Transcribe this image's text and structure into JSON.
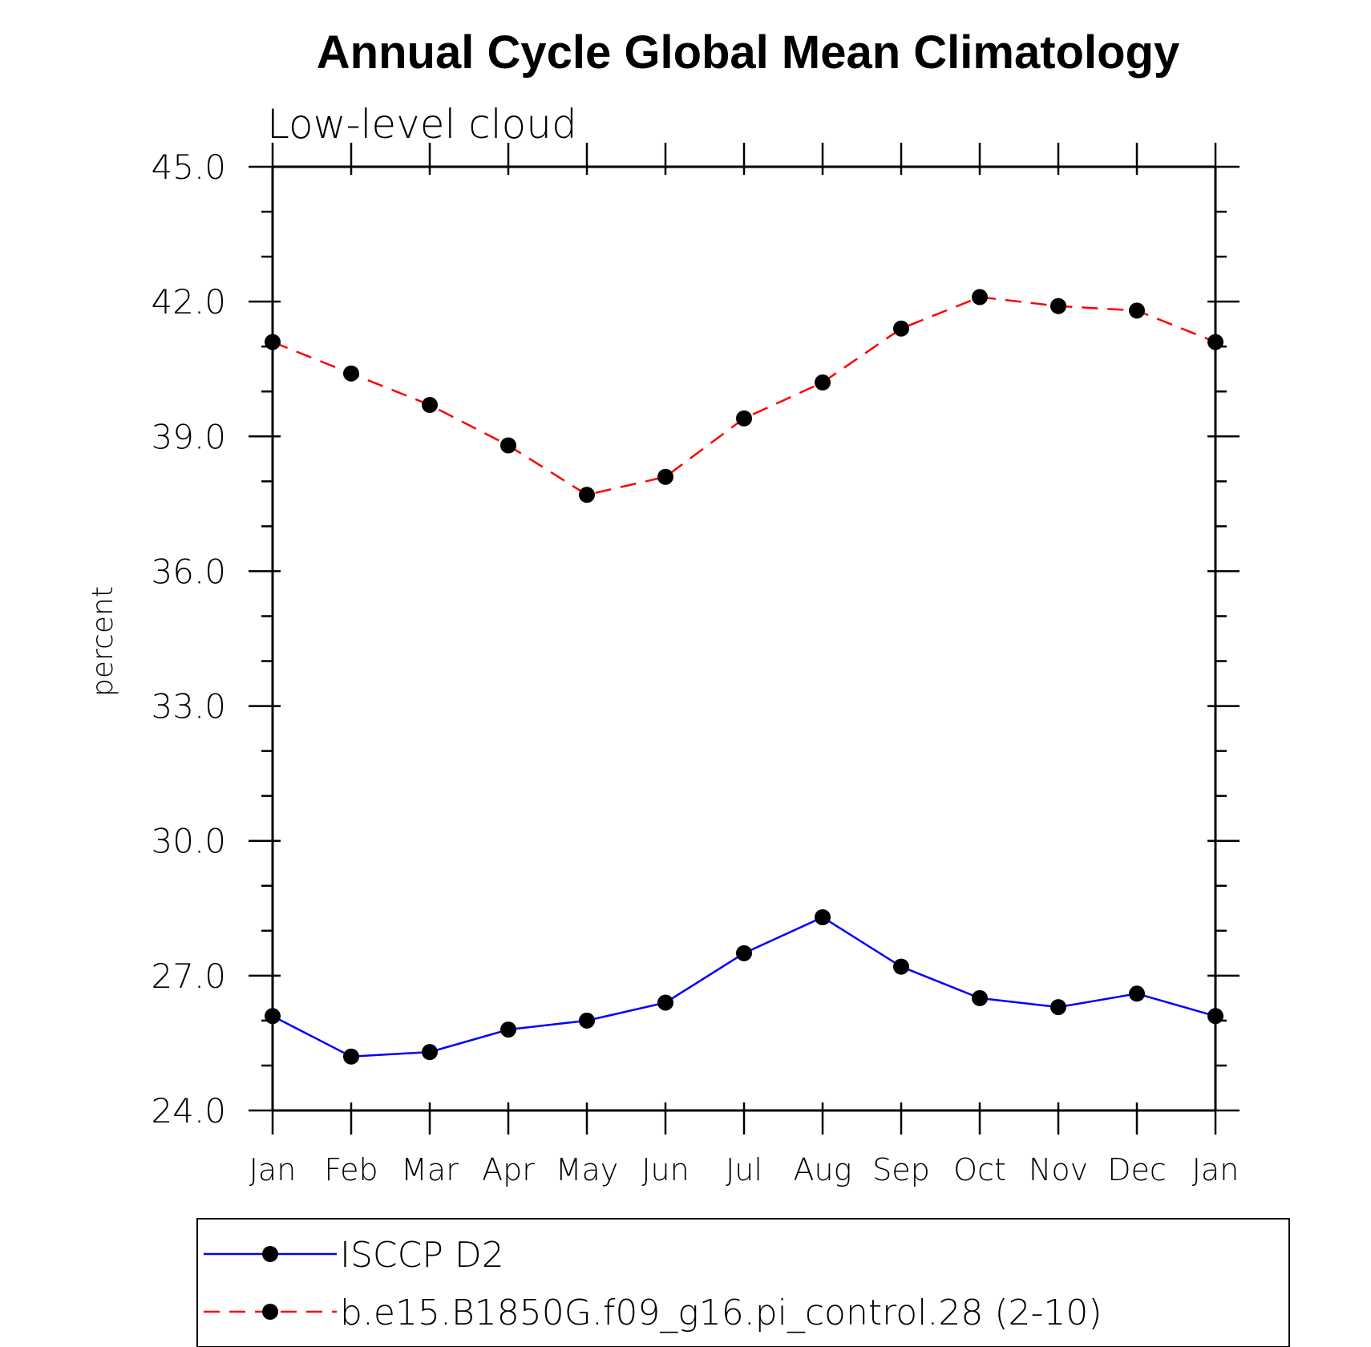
{
  "chart_data": {
    "type": "line",
    "title": "Annual Cycle Global Mean Climatology",
    "subtitle": "Low-level cloud",
    "xlabel": "",
    "ylabel": "percent",
    "categories": [
      "Jan",
      "Feb",
      "Mar",
      "Apr",
      "May",
      "Jun",
      "Jul",
      "Aug",
      "Sep",
      "Oct",
      "Nov",
      "Dec",
      "Jan"
    ],
    "ylim": [
      24.0,
      45.0
    ],
    "yticks": [
      "24.0",
      "27.0",
      "30.0",
      "33.0",
      "36.0",
      "39.0",
      "42.0",
      "45.0"
    ],
    "ytick_values": [
      24,
      27,
      30,
      33,
      36,
      39,
      42,
      45
    ],
    "series": [
      {
        "name": "ISCCP D2",
        "color": "#0000ff",
        "line_style": "solid",
        "marker": "filled-circle",
        "values": [
          26.1,
          25.2,
          25.3,
          25.8,
          26.0,
          26.4,
          27.5,
          28.3,
          27.2,
          26.5,
          26.3,
          26.6,
          26.1
        ]
      },
      {
        "name": "b.e15.B1850G.f09_g16.pi_control.28 (2-10)",
        "color": "#ff0000",
        "line_style": "dashed",
        "marker": "filled-circle",
        "values": [
          41.1,
          40.4,
          39.7,
          38.8,
          37.7,
          38.1,
          39.4,
          40.2,
          41.4,
          42.1,
          41.9,
          41.8,
          41.1
        ]
      }
    ],
    "grid": false,
    "legend_position": "bottom"
  }
}
